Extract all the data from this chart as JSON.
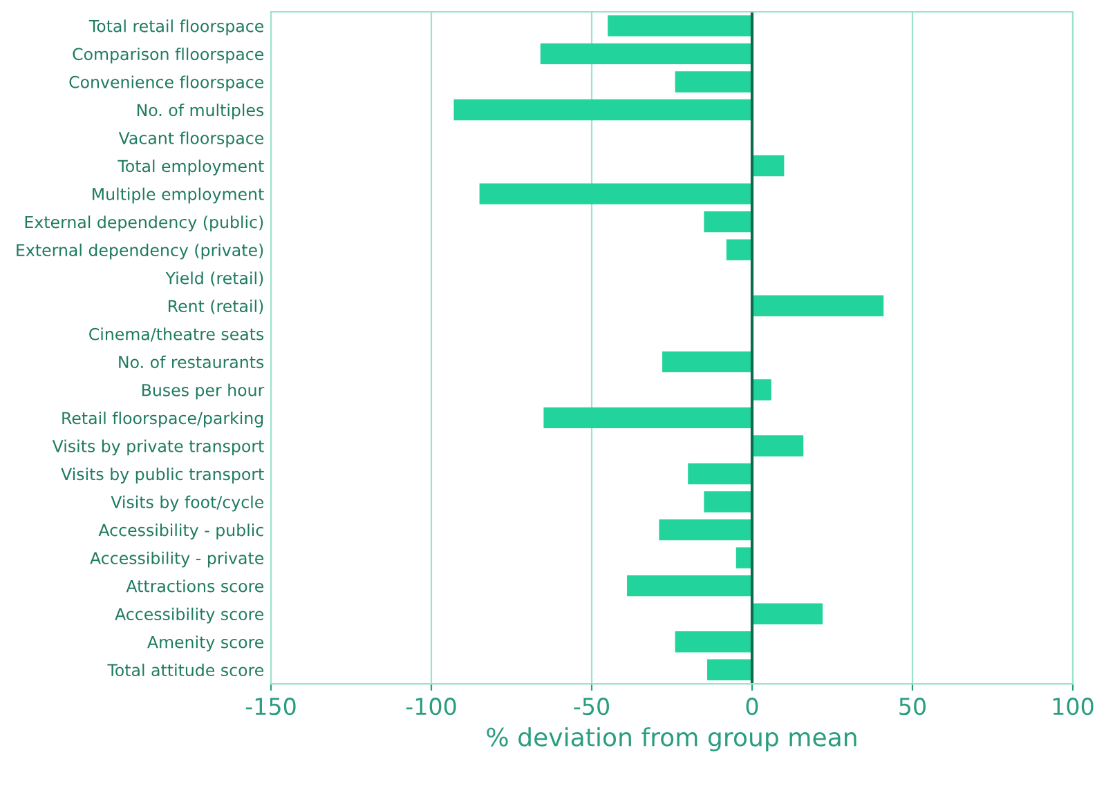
{
  "chart_data": {
    "type": "bar",
    "orientation": "horizontal",
    "xlabel": "% deviation from group mean",
    "categories": [
      "Total retail floorspace",
      "Comparison flloorspace",
      "Convenience floorspace",
      "No. of multiples",
      "Vacant floorspace",
      "Total employment",
      "Multiple employment",
      "External dependency (public)",
      "External dependency (private)",
      "Yield (retail)",
      "Rent (retail)",
      "Cinema/theatre seats",
      "No. of restaurants",
      "Buses per hour",
      "Retail floorspace/parking",
      "Visits by private transport",
      "Visits by public transport",
      "Visits by foot/cycle",
      "Accessibility - public",
      "Accessibility - private",
      "Attractions score",
      "Accessibility score",
      "Amenity score",
      "Total attitude score"
    ],
    "values": [
      -45,
      -66,
      -24,
      -93,
      0,
      10,
      -85,
      -15,
      -8,
      0,
      41,
      0,
      -28,
      6,
      -65,
      16,
      -20,
      -15,
      -29,
      -5,
      -39,
      22,
      -24,
      -14
    ],
    "color": "#22d39c",
    "xlim": [
      -150,
      100
    ],
    "xticks": [
      {
        "value": -150,
        "label": "-150"
      },
      {
        "value": -100,
        "label": "-100"
      },
      {
        "value": -50,
        "label": "-50"
      },
      0,
      50,
      100
    ],
    "ref_lines": [
      {
        "axis": "x",
        "value": 0,
        "color": "#0b6b4d"
      }
    ],
    "grid": "x"
  }
}
